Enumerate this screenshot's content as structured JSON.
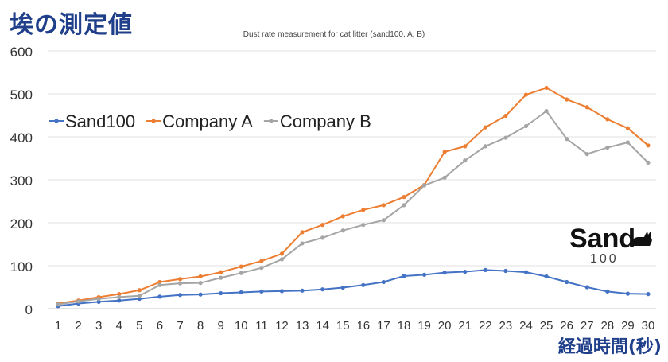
{
  "page": {
    "title": "埃の測定値"
  },
  "logo": {
    "text": "Sand",
    "sub": "100"
  },
  "chart_data": {
    "type": "line",
    "title": "Dust rate measurement for cat litter (sand100, A, B)",
    "xlabel": "経過時間(秒)",
    "ylabel": "",
    "ylim": [
      0,
      600
    ],
    "yticks": [
      0,
      100,
      200,
      300,
      400,
      500,
      600
    ],
    "x": [
      1,
      2,
      3,
      4,
      5,
      6,
      7,
      8,
      9,
      10,
      11,
      12,
      13,
      14,
      15,
      16,
      17,
      18,
      19,
      20,
      21,
      22,
      23,
      24,
      25,
      26,
      27,
      28,
      29,
      30
    ],
    "grid": "horizontal",
    "legend": "top-left",
    "series": [
      {
        "name": "Sand100",
        "color": "#4472c4",
        "values": [
          6,
          12,
          16,
          19,
          23,
          28,
          32,
          33,
          36,
          38,
          40,
          41,
          42,
          45,
          49,
          55,
          62,
          76,
          79,
          84,
          86,
          90,
          88,
          85,
          75,
          62,
          50,
          40,
          35,
          34
        ]
      },
      {
        "name": "Company A",
        "color": "#ed7d31",
        "values": [
          12,
          19,
          27,
          34,
          43,
          62,
          69,
          75,
          85,
          98,
          111,
          128,
          178,
          195,
          215,
          230,
          241,
          260,
          288,
          365,
          378,
          422,
          449,
          498,
          514,
          487,
          469,
          441,
          420,
          380
        ]
      },
      {
        "name": "Company B",
        "color": "#a5a5a5",
        "values": [
          10,
          17,
          23,
          27,
          30,
          55,
          59,
          60,
          72,
          83,
          95,
          115,
          152,
          165,
          182,
          195,
          206,
          241,
          287,
          305,
          345,
          378,
          398,
          425,
          460,
          395,
          360,
          375,
          387,
          340
        ]
      }
    ]
  }
}
